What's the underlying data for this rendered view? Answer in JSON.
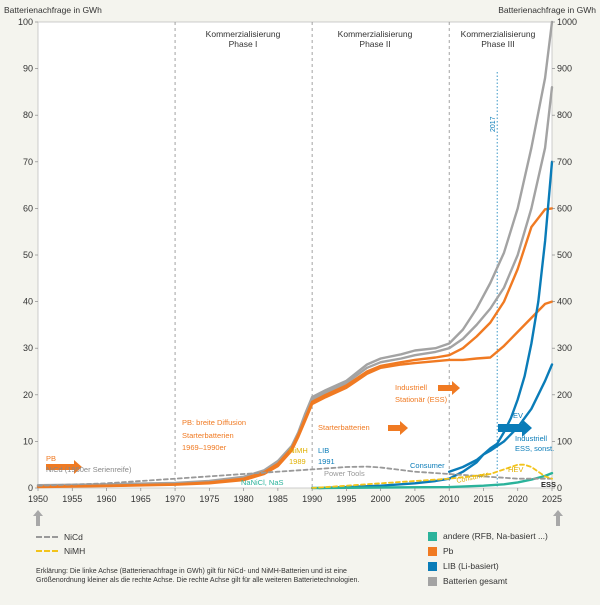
{
  "chart_data": {
    "type": "line",
    "y_left_label": "Batterienachfrage in GWh",
    "y_right_label": "Batterienachfrage in GWh",
    "y_left_range": [
      0,
      100
    ],
    "y_right_range": [
      0,
      1000
    ],
    "y_left_ticks": [
      "0",
      "10",
      "20",
      "30",
      "40",
      "50",
      "60",
      "70",
      "80",
      "90",
      "100"
    ],
    "y_right_ticks": [
      "0",
      "100",
      "200",
      "300",
      "400",
      "500",
      "600",
      "700",
      "800",
      "900",
      "1000"
    ],
    "x_range": [
      1950,
      2025
    ],
    "x_ticks": [
      "1950",
      "1955",
      "1960",
      "1965",
      "1970",
      "1975",
      "1980",
      "1985",
      "1990",
      "1995",
      "2000",
      "2005",
      "2010",
      "2015",
      "2020",
      "2025"
    ],
    "phases": [
      {
        "label": "Kommerzialisierung Phase I",
        "start": 1970,
        "end": 1990
      },
      {
        "label": "Kommerzialisierung Phase II",
        "start": 1990,
        "end": 2010
      },
      {
        "label": "Kommerzialisierung Phase III",
        "start": 2010,
        "end": 2025
      }
    ],
    "marker_year": {
      "label": "2017",
      "x": 2017
    },
    "series": [
      {
        "name": "Batterien gesamt (oberer Verlauf)",
        "axis": "right",
        "color": "#a3a3a3",
        "dashed": false,
        "x": [
          1950,
          1960,
          1970,
          1975,
          1980,
          1983,
          1985,
          1987,
          1988,
          1989,
          1990,
          1992,
          1995,
          1998,
          2000,
          2003,
          2005,
          2008,
          2010,
          2012,
          2014,
          2016,
          2018,
          2020,
          2022,
          2024,
          2025
        ],
        "y": [
          6,
          8,
          11,
          15,
          24,
          38,
          58,
          90,
          120,
          160,
          195,
          210,
          230,
          265,
          278,
          287,
          295,
          300,
          310,
          340,
          385,
          440,
          505,
          600,
          730,
          880,
          1000
        ]
      },
      {
        "name": "Batterien gesamt (unterer Verlauf)",
        "axis": "right",
        "color": "#a3a3a3",
        "dashed": false,
        "x": [
          1950,
          1960,
          1970,
          1975,
          1980,
          1983,
          1985,
          1987,
          1988,
          1989,
          1990,
          1992,
          1995,
          1998,
          2000,
          2003,
          2005,
          2008,
          2010,
          2012,
          2014,
          2016,
          2018,
          2020,
          2022,
          2024,
          2025
        ],
        "y": [
          5,
          7,
          10,
          13,
          20,
          34,
          52,
          85,
          115,
          155,
          190,
          205,
          225,
          258,
          270,
          278,
          285,
          292,
          300,
          320,
          350,
          385,
          430,
          500,
          600,
          730,
          860
        ]
      },
      {
        "name": "Pb (oberer Verlauf)",
        "axis": "right",
        "color": "#f07a22",
        "dashed": false,
        "x": [
          1950,
          1960,
          1970,
          1975,
          1980,
          1983,
          1985,
          1987,
          1988,
          1989,
          1990,
          1992,
          1995,
          1998,
          2000,
          2003,
          2005,
          2008,
          2010,
          2012,
          2014,
          2016,
          2018,
          2020,
          2022,
          2024,
          2025
        ],
        "y": [
          3,
          5,
          8,
          12,
          20,
          34,
          52,
          85,
          115,
          150,
          185,
          200,
          220,
          250,
          262,
          270,
          275,
          280,
          285,
          300,
          325,
          355,
          400,
          470,
          560,
          598,
          600
        ]
      },
      {
        "name": "Pb (unterer Verlauf)",
        "axis": "right",
        "color": "#f07a22",
        "dashed": false,
        "x": [
          1950,
          1960,
          1970,
          1975,
          1980,
          1983,
          1985,
          1987,
          1988,
          1989,
          1990,
          1992,
          1995,
          1998,
          2000,
          2003,
          2005,
          2008,
          2010,
          2012,
          2014,
          2016,
          2018,
          2020,
          2022,
          2024,
          2025
        ],
        "y": [
          2,
          4,
          7,
          10,
          17,
          30,
          47,
          80,
          110,
          145,
          180,
          195,
          215,
          245,
          258,
          265,
          268,
          272,
          275,
          275,
          278,
          280,
          305,
          335,
          365,
          395,
          400
        ]
      },
      {
        "name": "LIB (Li-basiert) – EV",
        "axis": "right",
        "color": "#0a7cb8",
        "dashed": false,
        "x": [
          2010,
          2012,
          2014,
          2015,
          2016,
          2017,
          2018,
          2019,
          2020,
          2021,
          2022,
          2023,
          2024,
          2025
        ],
        "y": [
          35,
          45,
          60,
          72,
          85,
          95,
          120,
          150,
          190,
          240,
          310,
          400,
          530,
          700
        ]
      },
      {
        "name": "LIB (Li-basiert) – Consumer",
        "axis": "right",
        "color": "#0a7cb8",
        "dashed": false,
        "x": [
          1991,
          1995,
          2000,
          2005,
          2008,
          2010,
          2012,
          2014,
          2015,
          2016,
          2018,
          2020,
          2022,
          2024,
          2025
        ],
        "y": [
          0,
          2,
          5,
          10,
          15,
          20,
          35,
          55,
          72,
          80,
          100,
          130,
          170,
          230,
          265
        ]
      },
      {
        "name": "andere (RFB, Na-basiert …)",
        "axis": "right",
        "color": "#2bb39b",
        "dashed": false,
        "x": [
          1990,
          2000,
          2010,
          2015,
          2018,
          2020,
          2022,
          2024,
          2025
        ],
        "y": [
          0,
          1,
          2,
          5,
          8,
          12,
          18,
          26,
          32
        ]
      },
      {
        "name": "NiCd",
        "axis": "left",
        "color": "#999999",
        "dashed": true,
        "x": [
          1950,
          1960,
          1970,
          1980,
          1985,
          1990,
          1995,
          1998,
          2000,
          2005,
          2010,
          2015,
          2020,
          2025
        ],
        "y": [
          0.5,
          1,
          2,
          3,
          3.5,
          4,
          4.5,
          4.6,
          4.4,
          3.5,
          3,
          2.5,
          2,
          2
        ]
      },
      {
        "name": "NiMH",
        "axis": "left",
        "color": "#f2c31b",
        "dashed": true,
        "x": [
          1990,
          1995,
          2000,
          2005,
          2010,
          2013,
          2016,
          2018,
          2019,
          2020,
          2021,
          2022,
          2023,
          2024,
          2025
        ],
        "y": [
          0,
          0.5,
          1,
          1.5,
          2,
          2.5,
          3,
          4,
          4.5,
          5,
          5,
          4.5,
          3.5,
          2.5,
          2
        ]
      }
    ],
    "annotations": {
      "pb": "PB",
      "nicd_1950": "NiCd (1950er Serienreife)",
      "pb_diffusion_1": "PB: breite Diffusion",
      "pb_diffusion_2": "Starterbatterien",
      "pb_diffusion_3": "1969–1990er",
      "nimh_1": "NiMH",
      "nimh_2": "1989",
      "lib_1": "LIB",
      "lib_2": "1991",
      "nacl": "NaNiCl, NaS",
      "power_tools": "Power Tools",
      "starter": "Starterbatterien",
      "ind_stat_1": "Industriell",
      "ind_stat_2": "Stationär (ESS)",
      "consumer_lib": "Consumer",
      "consumer_nimh": "Consumer",
      "hev": "HEV",
      "ev": "EV",
      "industriell_1": "Industriell",
      "industriell_2": "ESS, sonst.",
      "ess": "ESS"
    },
    "legend": [
      {
        "label": "NiCd",
        "color": "#999999",
        "style": "dashed"
      },
      {
        "label": "NiMH",
        "color": "#f2c31b",
        "style": "dashed"
      },
      {
        "label": "andere (RFB, Na-basiert ...)",
        "color": "#2bb39b",
        "style": "box"
      },
      {
        "label": "Pb",
        "color": "#f07a22",
        "style": "box"
      },
      {
        "label": "LIB (Li-basiert)",
        "color": "#0a7cb8",
        "style": "box"
      },
      {
        "label": "Batterien gesamt",
        "color": "#a3a3a3",
        "style": "box"
      }
    ],
    "note": "Erklärung: Die linke Achse (Batterienachfrage in GWh) gilt für NiCd- und NiMH-Batterien und ist eine Größenordnung kleiner als die rechte Achse. Die rechte Achse gilt für alle weiteren Batterietechnologien."
  }
}
